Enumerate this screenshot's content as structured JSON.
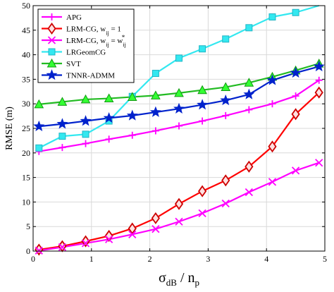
{
  "chart_data": {
    "type": "line",
    "xlabel": {
      "main": "σ",
      "sub": "dB",
      "sep": " / n",
      "sub2": "p"
    },
    "ylabel": "RMSE (m)",
    "xlim": [
      0,
      5
    ],
    "ylim": [
      0,
      50
    ],
    "xticks": [
      0,
      1,
      2,
      3,
      4,
      5
    ],
    "yticks": [
      0,
      5,
      10,
      15,
      20,
      25,
      30,
      35,
      40,
      45,
      50
    ],
    "grid": true,
    "legend_position": "top-left",
    "x": [
      0.1,
      0.5,
      0.9,
      1.3,
      1.7,
      2.1,
      2.5,
      2.9,
      3.3,
      3.7,
      4.1,
      4.5,
      4.9
    ],
    "series": [
      {
        "name": "APG",
        "color": "#ff00ff",
        "marker": "plus",
        "values": [
          20.3,
          21.1,
          21.9,
          22.8,
          23.6,
          24.5,
          25.5,
          26.5,
          27.6,
          28.8,
          30.0,
          31.6,
          34.8
        ]
      },
      {
        "name": "LRM-CG, w",
        "name_sub": "ij",
        "name_suffix": " = 1",
        "color": "#ff0000",
        "marker_color": "#cc0000",
        "marker": "diamond",
        "values": [
          0.3,
          1.0,
          2.0,
          3.1,
          4.6,
          6.7,
          9.6,
          12.2,
          14.4,
          17.2,
          21.3,
          27.9,
          32.3
        ]
      },
      {
        "name": "LRM-CG, w",
        "name_sub": "ij",
        "name_suffix": " = w",
        "name_suffix_sup": "*",
        "name_suffix_sub": "ij",
        "color": "#ff00ff",
        "marker": "x",
        "values": [
          0.1,
          0.8,
          1.6,
          2.4,
          3.4,
          4.5,
          6.0,
          7.7,
          9.7,
          12.0,
          14.1,
          16.4,
          18.0
        ]
      },
      {
        "name": "LRGeomCG",
        "color": "#33e8f0",
        "marker": "square",
        "values": [
          21.0,
          23.4,
          23.8,
          26.5,
          31.5,
          36.2,
          39.3,
          41.2,
          43.2,
          45.5,
          47.7,
          48.6,
          50.2
        ]
      },
      {
        "name": "SVT",
        "color": "#22bb22",
        "marker_color": "#33ff33",
        "marker": "triangle",
        "values": [
          29.9,
          30.4,
          30.9,
          31.1,
          31.4,
          31.7,
          32.2,
          32.8,
          33.4,
          34.3,
          35.5,
          36.8,
          38.2
        ]
      },
      {
        "name": "TNNR-ADMM",
        "color": "#0022cc",
        "marker": "star",
        "values": [
          25.4,
          25.9,
          26.5,
          27.1,
          27.6,
          28.3,
          29.0,
          29.8,
          30.7,
          31.9,
          34.8,
          36.3,
          37.6
        ]
      }
    ]
  }
}
